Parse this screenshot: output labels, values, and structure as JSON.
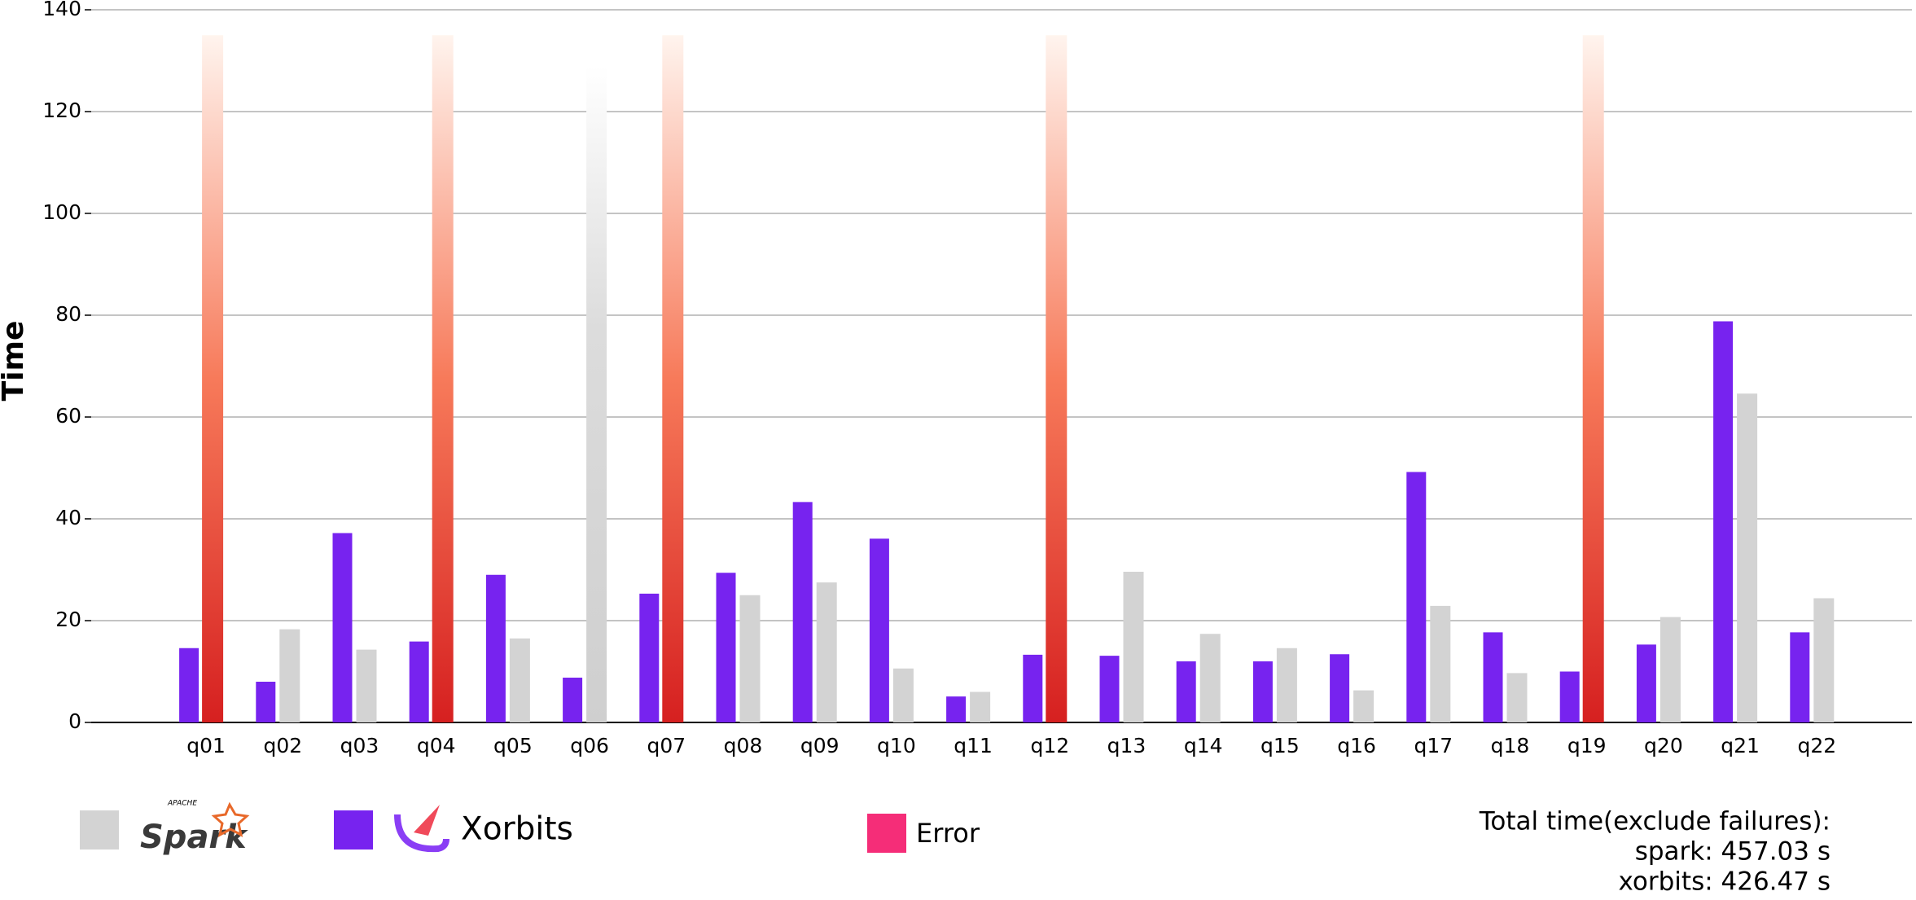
{
  "chart_data": {
    "type": "bar",
    "ylabel": "Time",
    "categories": [
      "q01",
      "q02",
      "q03",
      "q04",
      "q05",
      "q06",
      "q07",
      "q08",
      "q09",
      "q10",
      "q11",
      "q12",
      "q13",
      "q14",
      "q15",
      "q16",
      "q17",
      "q18",
      "q19",
      "q20",
      "q21",
      "q22"
    ],
    "series": [
      {
        "name": "Xorbits",
        "color": "#7723ef",
        "values": [
          14.6,
          8,
          37.2,
          15.9,
          29,
          8.8,
          25.3,
          29.4,
          43.3,
          36.1,
          5.1,
          13.3,
          13.1,
          12,
          12,
          13.4,
          49.2,
          17.7,
          10,
          15.3,
          78.8,
          17.7
        ]
      },
      {
        "name": "Spark",
        "color": "#d3d3d3",
        "values": [
          null,
          18.3,
          14.3,
          null,
          16.5,
          129,
          null,
          25,
          27.5,
          10.6,
          6,
          null,
          29.6,
          17.4,
          14.6,
          6.3,
          22.9,
          9.7,
          null,
          20.7,
          64.6,
          24.4
        ]
      },
      {
        "name": "Error",
        "color": "#f52d78",
        "values": [
          135,
          null,
          null,
          135,
          null,
          null,
          135,
          null,
          null,
          null,
          null,
          135,
          null,
          null,
          null,
          null,
          null,
          null,
          135,
          null,
          null,
          null
        ]
      }
    ],
    "spark_logo_caption": "APACHE",
    "ylim": [
      0,
      140
    ],
    "yticks": [
      0,
      20,
      40,
      60,
      80,
      100,
      120,
      140
    ],
    "grid": true,
    "annotations": [
      "Total time(exclude failures):",
      "spark: 457.03 s",
      "xorbits: 426.47 s"
    ]
  }
}
